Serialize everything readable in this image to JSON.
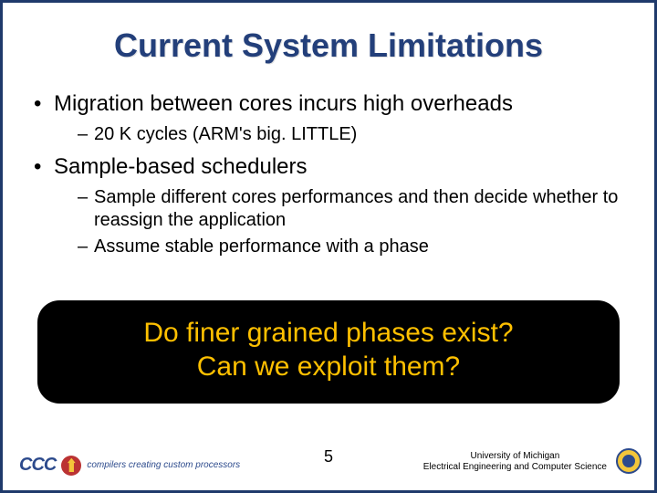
{
  "title": "Current System Limitations",
  "bullets": {
    "b1": "Migration between cores incurs high overheads",
    "b1_sub1": "20 K cycles (ARM's big. LITTLE)",
    "b2": "Sample-based schedulers",
    "b2_sub1": "Sample different cores performances and then decide whether to reassign the application",
    "b2_sub2": "Assume stable performance with a phase"
  },
  "callout": {
    "line1": "Do finer grained phases exist?",
    "line2": "Can we exploit them?",
    "bg": "#000000",
    "fg": "#ffc000"
  },
  "footer": {
    "page": "5",
    "logo_text": "CCC",
    "logo_sub": "compilers creating custom processors",
    "affil_line1": "University of Michigan",
    "affil_line2": "Electrical Engineering and Computer Science"
  },
  "colors": {
    "title": "#233f7a",
    "border": "#1f3a6b"
  }
}
